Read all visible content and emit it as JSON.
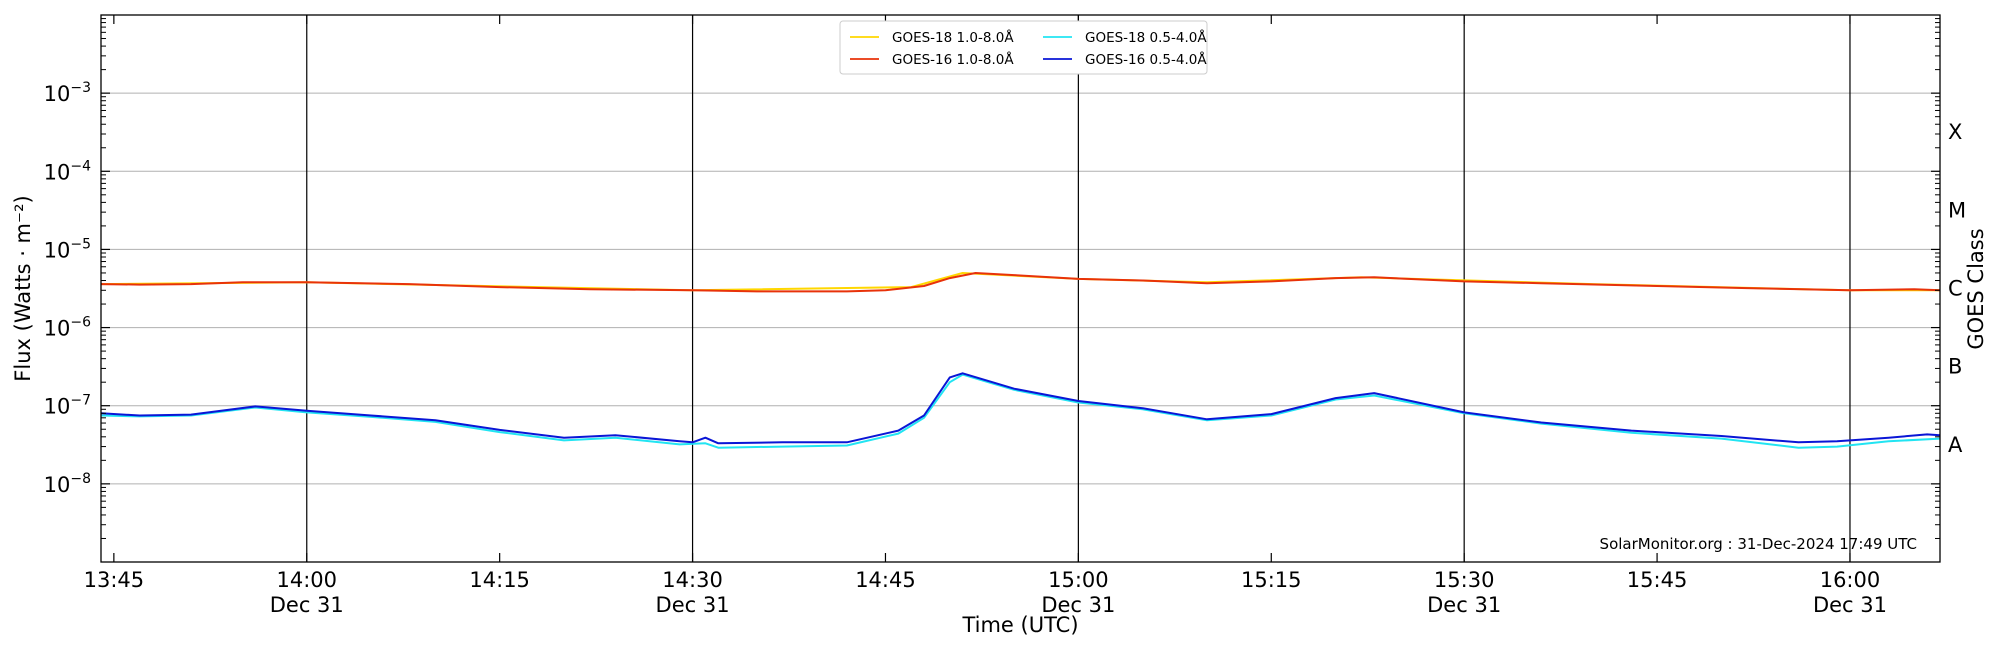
{
  "chart_data": {
    "type": "line",
    "xlabel": "Time (UTC)",
    "ylabel": "Flux (Watts · m⁻²)",
    "ylabel_right": "GOES Class",
    "x_range": [
      "13:44",
      "16:07"
    ],
    "ylim": [
      1e-09,
      0.01
    ],
    "yscale": "log",
    "grid": "horizontal",
    "legend_position": "top-center",
    "credit": "SolarMonitor.org : 31-Dec-2024 17:49 UTC",
    "y_ticks": [
      {
        "base": "10",
        "exp": "−3",
        "value": 0.001
      },
      {
        "base": "10",
        "exp": "−4",
        "value": 0.0001
      },
      {
        "base": "10",
        "exp": "−5",
        "value": 1e-05
      },
      {
        "base": "10",
        "exp": "−6",
        "value": 1e-06
      },
      {
        "base": "10",
        "exp": "−7",
        "value": 1e-07
      },
      {
        "base": "10",
        "exp": "−8",
        "value": 1e-08
      }
    ],
    "x_ticks": [
      {
        "time": "13:45",
        "label": "13:45",
        "date": "",
        "major": false
      },
      {
        "time": "14:00",
        "label": "14:00",
        "date": "Dec 31",
        "major": true
      },
      {
        "time": "14:15",
        "label": "14:15",
        "date": "",
        "major": false
      },
      {
        "time": "14:30",
        "label": "14:30",
        "date": "Dec 31",
        "major": true
      },
      {
        "time": "14:45",
        "label": "14:45",
        "date": "",
        "major": false
      },
      {
        "time": "15:00",
        "label": "15:00",
        "date": "Dec 31",
        "major": true
      },
      {
        "time": "15:15",
        "label": "15:15",
        "date": "",
        "major": false
      },
      {
        "time": "15:30",
        "label": "15:30",
        "date": "Dec 31",
        "major": true
      },
      {
        "time": "15:45",
        "label": "15:45",
        "date": "",
        "major": false
      },
      {
        "time": "16:00",
        "label": "16:00",
        "date": "Dec 31",
        "major": true
      }
    ],
    "goes_classes": [
      {
        "label": "X",
        "value": 0.00031623
      },
      {
        "label": "M",
        "value": 3.1623e-05
      },
      {
        "label": "C",
        "value": 3.1623e-06
      },
      {
        "label": "B",
        "value": 3.1623e-07
      },
      {
        "label": "A",
        "value": 3.1623e-08
      }
    ],
    "series": [
      {
        "name": "GOES-18 1.0-8.0Å",
        "color": "#ffd700",
        "points": [
          [
            "13:44",
            3.6e-06
          ],
          [
            "14:00",
            3.8e-06
          ],
          [
            "14:30",
            3e-06
          ],
          [
            "14:47",
            3.3e-06
          ],
          [
            "14:51",
            5e-06
          ],
          [
            "15:00",
            4.2e-06
          ],
          [
            "15:10",
            3.8e-06
          ],
          [
            "15:22",
            4.4e-06
          ],
          [
            "15:40",
            3.6e-06
          ],
          [
            "16:00",
            3e-06
          ],
          [
            "16:07",
            3e-06
          ]
        ]
      },
      {
        "name": "GOES-16 1.0-8.0Å",
        "color": "#e8320a",
        "points": [
          [
            "13:44",
            3.6e-06
          ],
          [
            "13:47",
            3.55e-06
          ],
          [
            "13:51",
            3.6e-06
          ],
          [
            "13:55",
            3.8e-06
          ],
          [
            "14:00",
            3.8e-06
          ],
          [
            "14:08",
            3.6e-06
          ],
          [
            "14:15",
            3.3e-06
          ],
          [
            "14:22",
            3.1e-06
          ],
          [
            "14:30",
            3e-06
          ],
          [
            "14:35",
            2.9e-06
          ],
          [
            "14:42",
            2.9e-06
          ],
          [
            "14:45",
            3e-06
          ],
          [
            "14:48",
            3.4e-06
          ],
          [
            "14:50",
            4.3e-06
          ],
          [
            "14:52",
            5e-06
          ],
          [
            "14:55",
            4.7e-06
          ],
          [
            "15:00",
            4.2e-06
          ],
          [
            "15:05",
            4e-06
          ],
          [
            "15:10",
            3.7e-06
          ],
          [
            "15:15",
            3.9e-06
          ],
          [
            "15:20",
            4.3e-06
          ],
          [
            "15:23",
            4.4e-06
          ],
          [
            "15:30",
            3.9e-06
          ],
          [
            "15:36",
            3.7e-06
          ],
          [
            "15:45",
            3.4e-06
          ],
          [
            "15:52",
            3.2e-06
          ],
          [
            "16:00",
            3e-06
          ],
          [
            "16:05",
            3.1e-06
          ],
          [
            "16:07",
            3e-06
          ]
        ]
      },
      {
        "name": "GOES-18 0.5-4.0Å",
        "color": "#22e4f2",
        "points": [
          [
            "13:44",
            7.5e-08
          ],
          [
            "13:47",
            7.3e-08
          ],
          [
            "13:51",
            7.5e-08
          ],
          [
            "13:56",
            9.5e-08
          ],
          [
            "14:00",
            8.2e-08
          ],
          [
            "14:05",
            7.2e-08
          ],
          [
            "14:10",
            6.2e-08
          ],
          [
            "14:15",
            4.6e-08
          ],
          [
            "14:20",
            3.6e-08
          ],
          [
            "14:24",
            3.9e-08
          ],
          [
            "14:29",
            3.2e-08
          ],
          [
            "14:31",
            3.3e-08
          ],
          [
            "14:32",
            2.9e-08
          ],
          [
            "14:37",
            3e-08
          ],
          [
            "14:42",
            3.1e-08
          ],
          [
            "14:46",
            4.4e-08
          ],
          [
            "14:48",
            7e-08
          ],
          [
            "14:50",
            2e-07
          ],
          [
            "14:51",
            2.5e-07
          ],
          [
            "14:55",
            1.6e-07
          ],
          [
            "15:00",
            1.1e-07
          ],
          [
            "15:05",
            9e-08
          ],
          [
            "15:10",
            6.5e-08
          ],
          [
            "15:15",
            7.5e-08
          ],
          [
            "15:20",
            1.2e-07
          ],
          [
            "15:23",
            1.35e-07
          ],
          [
            "15:30",
            8e-08
          ],
          [
            "15:36",
            5.9e-08
          ],
          [
            "15:43",
            4.5e-08
          ],
          [
            "15:50",
            3.8e-08
          ],
          [
            "15:56",
            2.9e-08
          ],
          [
            "15:59",
            3e-08
          ],
          [
            "16:03",
            3.5e-08
          ],
          [
            "16:07",
            3.8e-08
          ]
        ]
      },
      {
        "name": "GOES-16 0.5-4.0Å",
        "color": "#0a16d6",
        "points": [
          [
            "13:44",
            8e-08
          ],
          [
            "13:47",
            7.5e-08
          ],
          [
            "13:51",
            7.7e-08
          ],
          [
            "13:56",
            9.8e-08
          ],
          [
            "14:00",
            8.6e-08
          ],
          [
            "14:05",
            7.5e-08
          ],
          [
            "14:10",
            6.5e-08
          ],
          [
            "14:15",
            4.9e-08
          ],
          [
            "14:20",
            3.9e-08
          ],
          [
            "14:24",
            4.2e-08
          ],
          [
            "14:29",
            3.5e-08
          ],
          [
            "14:30",
            3.4e-08
          ],
          [
            "14:31",
            3.9e-08
          ],
          [
            "14:32",
            3.3e-08
          ],
          [
            "14:37",
            3.4e-08
          ],
          [
            "14:42",
            3.4e-08
          ],
          [
            "14:46",
            4.8e-08
          ],
          [
            "14:48",
            7.5e-08
          ],
          [
            "14:50",
            2.3e-07
          ],
          [
            "14:51",
            2.6e-07
          ],
          [
            "14:55",
            1.65e-07
          ],
          [
            "15:00",
            1.15e-07
          ],
          [
            "15:05",
            9.3e-08
          ],
          [
            "15:10",
            6.7e-08
          ],
          [
            "15:15",
            7.8e-08
          ],
          [
            "15:20",
            1.25e-07
          ],
          [
            "15:23",
            1.45e-07
          ],
          [
            "15:30",
            8.2e-08
          ],
          [
            "15:36",
            6.1e-08
          ],
          [
            "15:43",
            4.8e-08
          ],
          [
            "15:50",
            4.1e-08
          ],
          [
            "15:56",
            3.4e-08
          ],
          [
            "15:59",
            3.5e-08
          ],
          [
            "16:03",
            3.9e-08
          ],
          [
            "16:06",
            4.3e-08
          ],
          [
            "16:07",
            4.2e-08
          ]
        ]
      }
    ]
  }
}
